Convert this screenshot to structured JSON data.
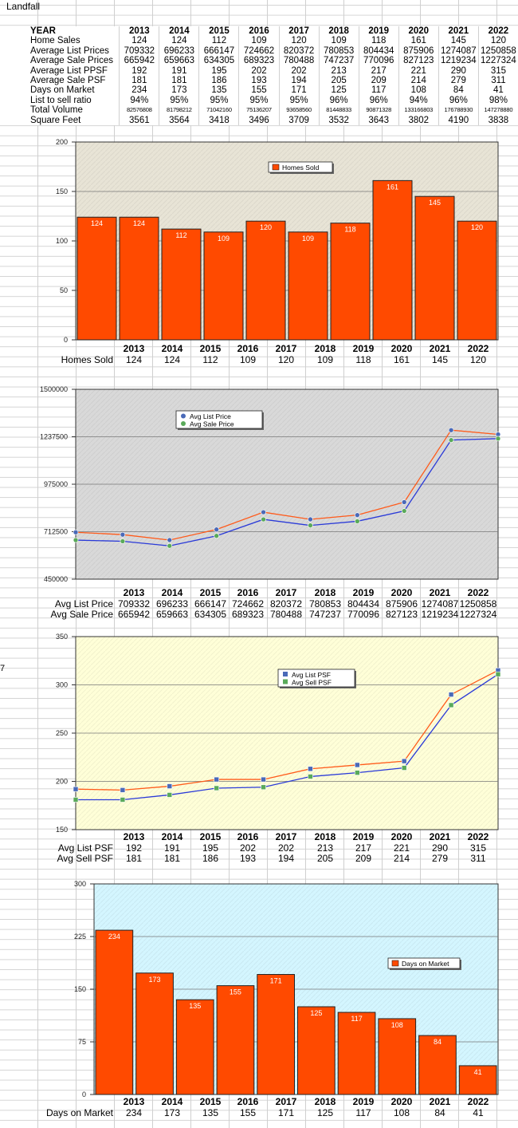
{
  "sheet_title": "Landfall",
  "edge_fragment": "7",
  "table": {
    "header": [
      "YEAR",
      "2013",
      "2014",
      "2015",
      "2016",
      "2017",
      "2018",
      "2019",
      "2020",
      "2021",
      "2022"
    ],
    "rows": [
      {
        "label": "Home Sales",
        "values": [
          "124",
          "124",
          "112",
          "109",
          "120",
          "109",
          "118",
          "161",
          "145",
          "120"
        ]
      },
      {
        "label": "Average List Prices",
        "values": [
          "709332",
          "696233",
          "666147",
          "724662",
          "820372",
          "780853",
          "804434",
          "875906",
          "1274087",
          "1250858"
        ]
      },
      {
        "label": "Average Sale Prices",
        "values": [
          "665942",
          "659663",
          "634305",
          "689323",
          "780488",
          "747237",
          "770096",
          "827123",
          "1219234",
          "1227324"
        ]
      },
      {
        "label": "Average List PPSF",
        "values": [
          "192",
          "191",
          "195",
          "202",
          "202",
          "213",
          "217",
          "221",
          "290",
          "315"
        ]
      },
      {
        "label": "Average Sale PSF",
        "values": [
          "181",
          "181",
          "186",
          "193",
          "194",
          "205",
          "209",
          "214",
          "279",
          "311"
        ]
      },
      {
        "label": "Days on Market",
        "values": [
          "234",
          "173",
          "135",
          "155",
          "171",
          "125",
          "117",
          "108",
          "84",
          "41"
        ]
      },
      {
        "label": "List to sell ratio",
        "values": [
          "94%",
          "95%",
          "95%",
          "95%",
          "95%",
          "96%",
          "96%",
          "94%",
          "96%",
          "98%"
        ]
      },
      {
        "label": "Total Volume",
        "small": true,
        "values": [
          "82576808",
          "81798212",
          "71042160",
          "75136207",
          "93658560",
          "81448833",
          "90871328",
          "133166803",
          "176788930",
          "147278880"
        ]
      },
      {
        "label": "Square Feet",
        "values": [
          "3561",
          "3564",
          "3418",
          "3496",
          "3709",
          "3532",
          "3643",
          "3802",
          "4190",
          "3838"
        ]
      }
    ]
  },
  "chart_data": [
    {
      "type": "bar",
      "categories": [
        "2013",
        "2014",
        "2015",
        "2016",
        "2017",
        "2018",
        "2019",
        "2020",
        "2021",
        "2022"
      ],
      "series": [
        {
          "name": "Homes Sold",
          "values": [
            124,
            124,
            112,
            109,
            120,
            109,
            118,
            161,
            145,
            120
          ]
        }
      ],
      "ylim": [
        0,
        200
      ],
      "yticks": [
        "0",
        "50",
        "100",
        "150",
        "200"
      ],
      "row_label": "Homes Sold",
      "legend": "top-center",
      "grid": true,
      "colors": {
        "bar": "#ff4a00",
        "plot_bg": "#e8e4d6",
        "label": "#ffffff"
      }
    },
    {
      "type": "line",
      "categories": [
        "2013",
        "2014",
        "2015",
        "2016",
        "2017",
        "2018",
        "2019",
        "2020",
        "2021",
        "2022"
      ],
      "series": [
        {
          "name": "Avg List Price",
          "values": [
            709332,
            696233,
            666147,
            724662,
            820372,
            780853,
            804434,
            875906,
            1274087,
            1250858
          ],
          "color": "#ff5a1a",
          "marker": "#4a6ab8"
        },
        {
          "name": "Avg Sale Price",
          "values": [
            665942,
            659663,
            634305,
            689323,
            780488,
            747237,
            770096,
            827123,
            1219234,
            1227324
          ],
          "color": "#2a3ad8",
          "marker": "#5aaa5a"
        }
      ],
      "ylim": [
        450000,
        1500000
      ],
      "yticks": [
        "450000",
        "712500",
        "975000",
        "1237500",
        "1500000"
      ],
      "row_labels": [
        "Avg List Price",
        "Avg Sale Price"
      ],
      "legend": "top-left",
      "grid": true,
      "colors": {
        "plot_bg": "#d9d9d9"
      }
    },
    {
      "type": "line",
      "categories": [
        "2013",
        "2014",
        "2015",
        "2016",
        "2017",
        "2018",
        "2019",
        "2020",
        "2021",
        "2022"
      ],
      "series": [
        {
          "name": "Avg List PSF",
          "values": [
            192,
            191,
            195,
            202,
            202,
            213,
            217,
            221,
            290,
            315
          ],
          "color": "#ff5a1a",
          "marker": "#4a6ab8"
        },
        {
          "name": "Avg Sell PSF",
          "values": [
            181,
            181,
            186,
            193,
            194,
            205,
            209,
            214,
            279,
            311
          ],
          "color": "#2a3ad8",
          "marker": "#5aaa5a"
        }
      ],
      "ylim": [
        150,
        350
      ],
      "yticks": [
        "150",
        "200",
        "250",
        "300",
        "350"
      ],
      "row_labels": [
        "Avg List PSF",
        "Avg Sell PSF"
      ],
      "legend": "top-center",
      "grid": true,
      "colors": {
        "plot_bg": "#ffffd8"
      }
    },
    {
      "type": "bar",
      "categories": [
        "2013",
        "2014",
        "2015",
        "2016",
        "2017",
        "2018",
        "2019",
        "2020",
        "2021",
        "2022"
      ],
      "series": [
        {
          "name": "Days on Market",
          "values": [
            234,
            173,
            135,
            155,
            171,
            125,
            117,
            108,
            84,
            41
          ]
        }
      ],
      "ylim": [
        0,
        300
      ],
      "yticks": [
        "0",
        "75",
        "150",
        "225",
        "300"
      ],
      "row_label": "Days on Market",
      "legend": "right",
      "grid": true,
      "colors": {
        "bar": "#ff4a00",
        "plot_bg": "#d4f6ff",
        "label": "#ffffff"
      }
    }
  ]
}
